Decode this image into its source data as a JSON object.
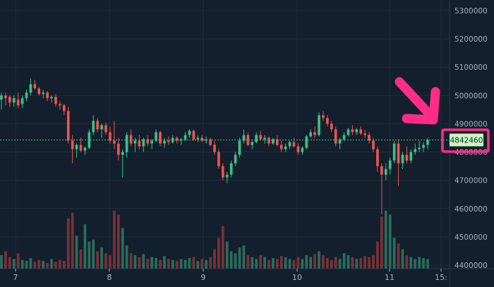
{
  "colors": {
    "background": "#131f2c",
    "grid": "#1f2e3d",
    "up": "#3ebf8a",
    "down": "#ef5350",
    "vol_up": "#2a6e5b",
    "vol_down": "#7a3236",
    "axis_text": "#a6b3bf",
    "price_line": "#3ebf8a",
    "price_tag_bg": "#c9f5c3",
    "price_tag_text": "#10301a",
    "highlight": "#ff2d87",
    "arrow": "#ff2d87"
  },
  "chart_data": {
    "type": "candlestick",
    "y_ticks": [
      "5300000",
      "5200000",
      "5100000",
      "5000000",
      "4900000",
      "4800000",
      "4700000",
      "4600000",
      "4500000",
      "4400000"
    ],
    "x_ticks": [
      "7",
      "8",
      "9",
      "10",
      "11",
      "15:"
    ],
    "ylim": [
      4400000,
      5300000
    ],
    "current_price": "4842460",
    "current_price_value": 4842460,
    "candles": [],
    "volumes": [],
    "grid": true
  }
}
